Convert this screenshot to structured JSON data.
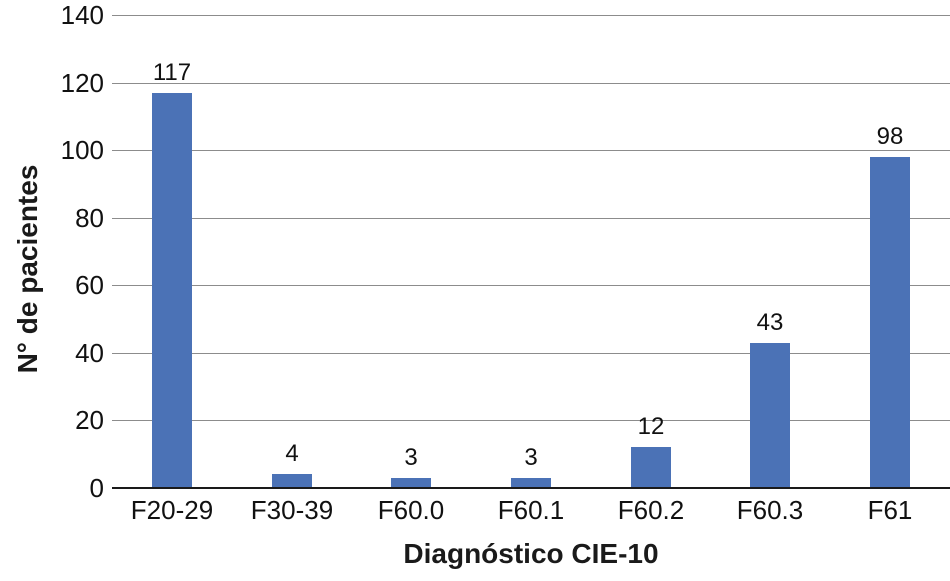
{
  "chart_data": {
    "type": "bar",
    "categories": [
      "F20-29",
      "F30-39",
      "F60.0",
      "F60.1",
      "F60.2",
      "F60.3",
      "F61"
    ],
    "values": [
      117,
      4,
      3,
      3,
      12,
      43,
      98
    ],
    "title": "",
    "xlabel": "Diagnóstico CIE-10",
    "ylabel": "N° de pacientes",
    "ylim": [
      0,
      140
    ],
    "y_ticks": [
      0,
      20,
      40,
      60,
      80,
      100,
      120,
      140
    ],
    "grid": true,
    "legend": "none",
    "bar_color": "#4b72b6",
    "gridline_color": "#8c8c8c",
    "axis_line_color": "#1a1a1a",
    "text_color": "#111111",
    "background_color": "#ffffff"
  }
}
